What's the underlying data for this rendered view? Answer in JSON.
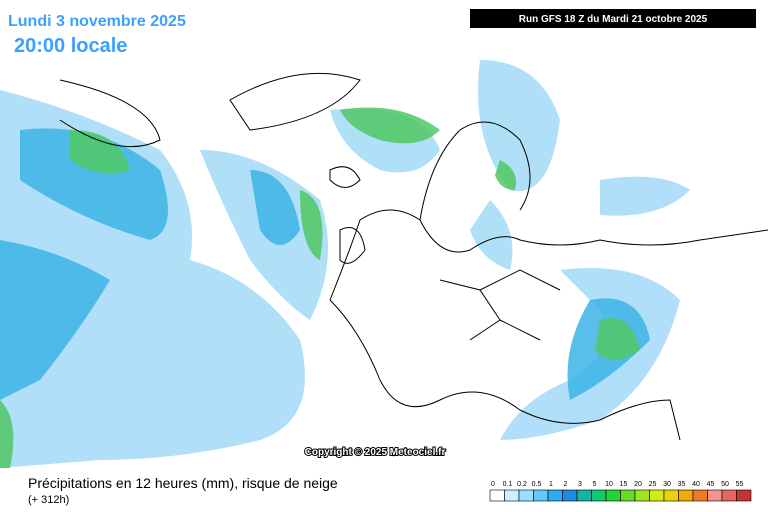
{
  "header": {
    "date": "Lundi 3 novembre 2025",
    "time": "20:00 locale",
    "run": "Run GFS 18 Z du Mardi 21 octobre 2025"
  },
  "copyright": "Copyright © 2025 Meteociel.fr",
  "footer": {
    "title": "Précipitations en 12 heures (mm), risque de neige",
    "range": "(+ 312h)"
  },
  "legend": {
    "labels": [
      "0",
      "0.1",
      "0.2",
      "0.5",
      "1",
      "2",
      "3",
      "5",
      "10",
      "15",
      "20",
      "25",
      "30",
      "35",
      "40",
      "45",
      "50",
      "55"
    ],
    "colors": [
      "#ffffff",
      "#c8f0ff",
      "#96e1ff",
      "#64c8ff",
      "#32aaf0",
      "#1e8cdc",
      "#14b4a0",
      "#14c878",
      "#28d232",
      "#64dc28",
      "#a0e61e",
      "#d2eb14",
      "#f0d20a",
      "#f0aa0a",
      "#f07828",
      "#f0968c",
      "#e66464",
      "#c83232"
    ]
  }
}
